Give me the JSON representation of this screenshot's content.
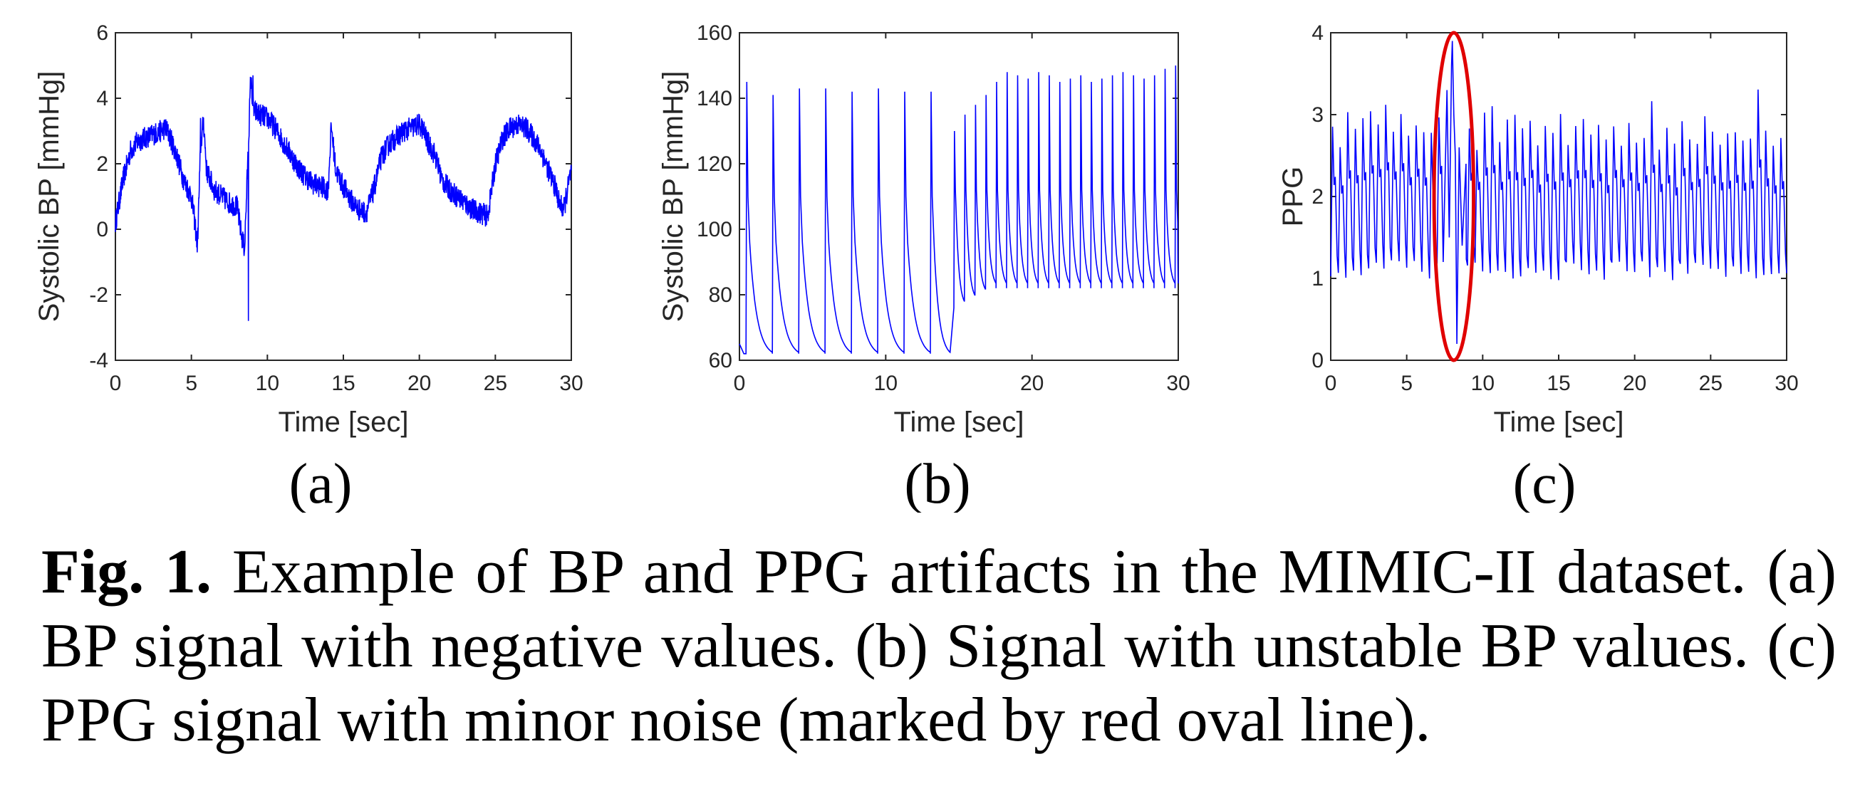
{
  "caption": {
    "label": "Fig. 1.",
    "text": "Example of BP and PPG artifacts in the MIMIC-II dataset. (a) BP signal with negative values. (b) Signal with unstable BP values. (c) PPG signal with minor noise (marked by red oval line)."
  },
  "colors": {
    "signal": "#0000ff",
    "annotation": "#e00000",
    "axes": "#262626"
  },
  "chart_data": [
    {
      "type": "line",
      "panel_label": "(a)",
      "xlabel": "Time [sec]",
      "ylabel": "Systolic BP [mmHg]",
      "xlim": [
        0,
        30
      ],
      "ylim": [
        -4,
        6
      ],
      "xticks": [
        0,
        5,
        10,
        15,
        20,
        25,
        30
      ],
      "yticks": [
        -4,
        -2,
        0,
        2,
        4,
        6
      ],
      "grid": false,
      "series": [
        {
          "x": [
            0,
            0.5,
            1,
            1.5,
            2,
            2.5,
            3,
            3.3,
            3.6,
            4,
            4.5,
            5,
            5.2,
            5.4,
            5.6,
            5.8,
            6,
            6.5,
            7,
            7.5,
            8,
            8.3,
            8.5,
            8.8,
            8.9,
            9.1,
            9.5,
            10,
            10.5,
            11,
            11.5,
            12,
            12.5,
            13,
            13.5,
            14,
            14.2,
            14.5,
            15,
            15.5,
            16,
            16.5,
            17,
            17.5,
            18,
            18.5,
            19,
            19.5,
            20,
            20.3,
            20.5,
            21,
            21.5,
            22,
            22.5,
            23,
            23.5,
            24,
            24.5,
            25,
            25.5,
            26,
            26.5,
            27,
            27.5,
            28,
            28.5,
            29,
            29.2,
            29.5,
            30
          ],
          "y": [
            0.2,
            1.5,
            2.4,
            2.7,
            2.8,
            2.9,
            3.0,
            3.1,
            2.8,
            2.3,
            1.5,
            1.0,
            0.3,
            -0.5,
            2.5,
            3.3,
            1.8,
            1.2,
            1.0,
            0.8,
            0.7,
            -0.2,
            -0.6,
            3.2,
            4.6,
            3.6,
            3.5,
            3.4,
            3.1,
            2.7,
            2.3,
            1.9,
            1.6,
            1.4,
            1.3,
            1.2,
            3.2,
            1.8,
            1.3,
            0.9,
            0.6,
            0.5,
            1.2,
            2.2,
            2.6,
            2.8,
            3.0,
            3.1,
            3.2,
            3.0,
            2.7,
            2.3,
            1.5,
            1.2,
            1.0,
            0.8,
            0.6,
            0.5,
            0.4,
            2.0,
            2.8,
            3.1,
            3.2,
            3.1,
            2.8,
            2.4,
            1.8,
            1.2,
            0.8,
            0.6,
            1.8
          ],
          "spikes": [
            {
              "x": 8.75,
              "y": -2.8
            },
            {
              "x": 9.05,
              "y": 4.7
            },
            {
              "x": 5.6,
              "y": 3.4
            },
            {
              "x": 14.2,
              "y": 3.2
            }
          ]
        }
      ]
    },
    {
      "type": "line",
      "panel_label": "(b)",
      "xlabel": "Time [sec]",
      "ylabel": "Systolic BP [mmHg]",
      "xlim": [
        0,
        30
      ],
      "ylim": [
        60,
        160
      ],
      "xticks": [
        0,
        10,
        20,
        30
      ],
      "yticks": [
        60,
        80,
        100,
        120,
        140,
        160
      ],
      "grid": false,
      "series": [
        {
          "segments": [
            {
              "t_start": 0,
              "t_end": 14.4,
              "period": 1.8,
              "first_peak": 0.5,
              "peaks": [
                145,
                141,
                143,
                143,
                142,
                143,
                142,
                142
              ],
              "trough": 61
            },
            {
              "t_start": 14.4,
              "t_end": 30,
              "period": 0.72,
              "peaks": [
                130,
                135,
                138,
                141,
                145,
                148,
                147,
                146,
                148,
                147,
                145,
                146,
                147,
                145,
                146,
                147,
                148,
                147,
                146,
                147,
                149,
                150
              ],
              "trough": 82
            }
          ]
        }
      ]
    },
    {
      "type": "line",
      "panel_label": "(c)",
      "xlabel": "Time [sec]",
      "ylabel": "PPG",
      "xlim": [
        0,
        30
      ],
      "ylim": [
        0,
        4
      ],
      "xticks": [
        0,
        5,
        10,
        15,
        20,
        25,
        30
      ],
      "yticks": [
        0,
        1,
        2,
        3,
        4
      ],
      "grid": false,
      "series": [
        {
          "period": 0.5,
          "peak": 2.8,
          "trough": 1.1,
          "artifact": {
            "x_peak": 8.0,
            "y_peak": 3.9,
            "x_dip": 8.3,
            "y_dip": 0.2
          }
        }
      ],
      "annotation": {
        "shape": "ellipse",
        "cx": 8.1,
        "cy": 2.0,
        "rx": 1.3,
        "ry": 2.0
      }
    }
  ]
}
